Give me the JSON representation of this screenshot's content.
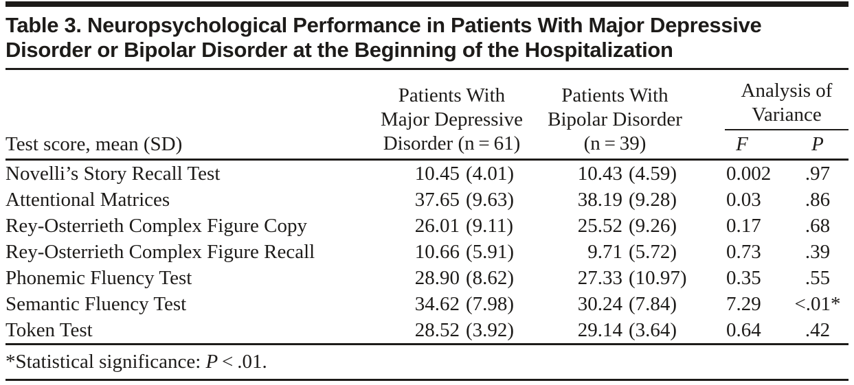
{
  "title": "Table 3. Neuropsychological Performance in Patients With Major Depressive\nDisorder or Bipolar Disorder at the Beginning of the Hospitalization",
  "header": {
    "test_col": "Test score, mean (SD)",
    "group_mdd": "Patients With\nMajor Depressive\nDisorder (n = 61)",
    "group_bd": "Patients With\nBipolar Disorder\n(n = 39)",
    "anova": "Analysis of\nVariance",
    "f_label": "F",
    "p_label": "P"
  },
  "rows": [
    {
      "label": "Novelli’s Story Recall Test",
      "mdd_mean": "10.45",
      "mdd_sd": "(4.01)",
      "bd_mean": "10.43",
      "bd_sd": "(4.59)",
      "f": "0.002",
      "p": ".97"
    },
    {
      "label": "Attentional Matrices",
      "mdd_mean": "37.65",
      "mdd_sd": "(9.63)",
      "bd_mean": "38.19",
      "bd_sd": "(9.28)",
      "f": "0.03",
      "p": ".86"
    },
    {
      "label": "Rey-Osterrieth Complex Figure Copy",
      "mdd_mean": "26.01",
      "mdd_sd": "(9.11)",
      "bd_mean": "25.52",
      "bd_sd": "(9.26)",
      "f": "0.17",
      "p": ".68"
    },
    {
      "label": "Rey-Osterrieth Complex Figure Recall",
      "mdd_mean": "10.66",
      "mdd_sd": "(5.91)",
      "bd_mean": "9.71",
      "bd_sd": "(5.72)",
      "f": "0.73",
      "p": ".39"
    },
    {
      "label": "Phonemic Fluency Test",
      "mdd_mean": "28.90",
      "mdd_sd": "(8.62)",
      "bd_mean": "27.33",
      "bd_sd": "(10.97)",
      "f": "0.35",
      "p": ".55"
    },
    {
      "label": "Semantic Fluency Test",
      "mdd_mean": "34.62",
      "mdd_sd": "(7.98)",
      "bd_mean": "30.24",
      "bd_sd": "(7.84)",
      "f": "7.29",
      "p": "<.01*"
    },
    {
      "label": "Token Test",
      "mdd_mean": "28.52",
      "mdd_sd": "(3.92)",
      "bd_mean": "29.14",
      "bd_sd": "(3.64)",
      "f": "0.64",
      "p": ".42"
    }
  ],
  "footnote": {
    "prefix": "*Statistical significance: ",
    "p_symbol": "P",
    "suffix": " < .01."
  },
  "colors": {
    "text": "#1d1b19",
    "rule": "#1d1b19",
    "background": "#ffffff"
  }
}
